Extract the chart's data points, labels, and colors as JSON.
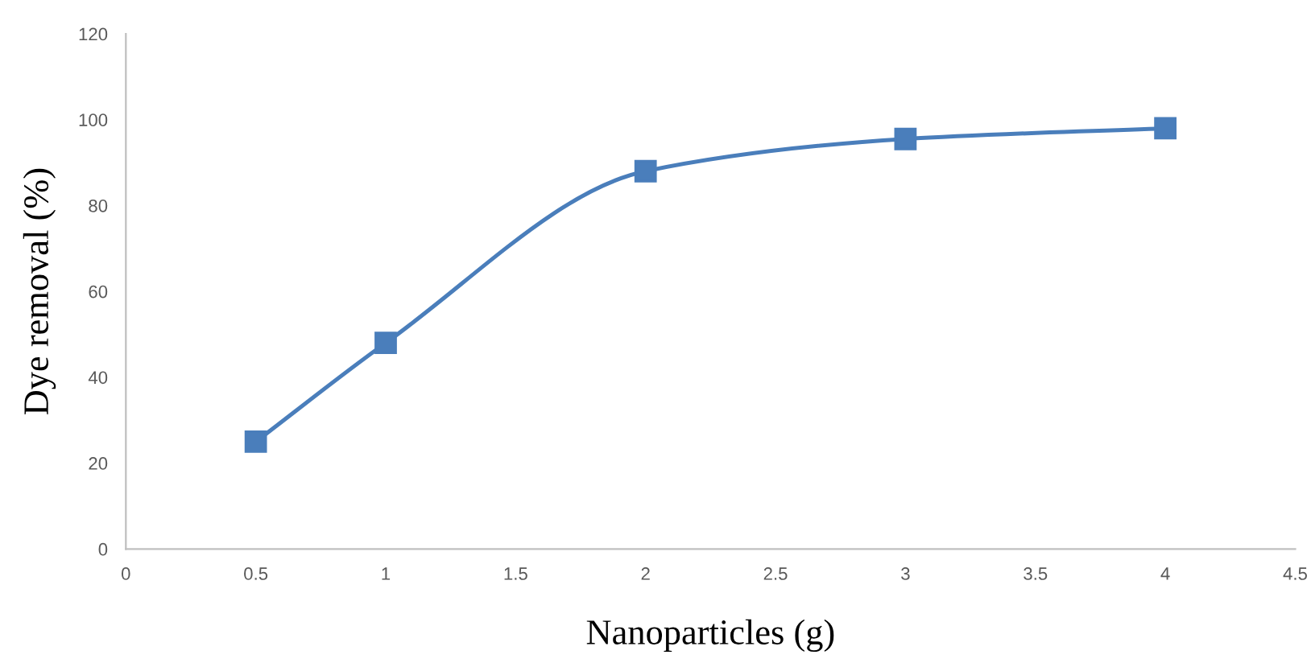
{
  "chart_data": {
    "type": "line",
    "xlabel": "Nanoparticles (g)",
    "ylabel": "Dye removal (%)",
    "x": [
      0.5,
      1,
      2,
      3,
      4
    ],
    "series": [
      {
        "color": "#4a7ebb",
        "values": [
          25,
          48,
          88,
          95.5,
          98
        ]
      }
    ],
    "xlim": [
      0,
      4.5
    ],
    "xticks": [
      0,
      0.5,
      1,
      1.5,
      2,
      2.5,
      3,
      3.5,
      4,
      4.5
    ],
    "ylim": [
      0,
      120
    ],
    "yticks": [
      0,
      20,
      40,
      60,
      80,
      100,
      120
    ],
    "grid": false,
    "legend": false,
    "marker": "square",
    "line_style": "solid"
  }
}
